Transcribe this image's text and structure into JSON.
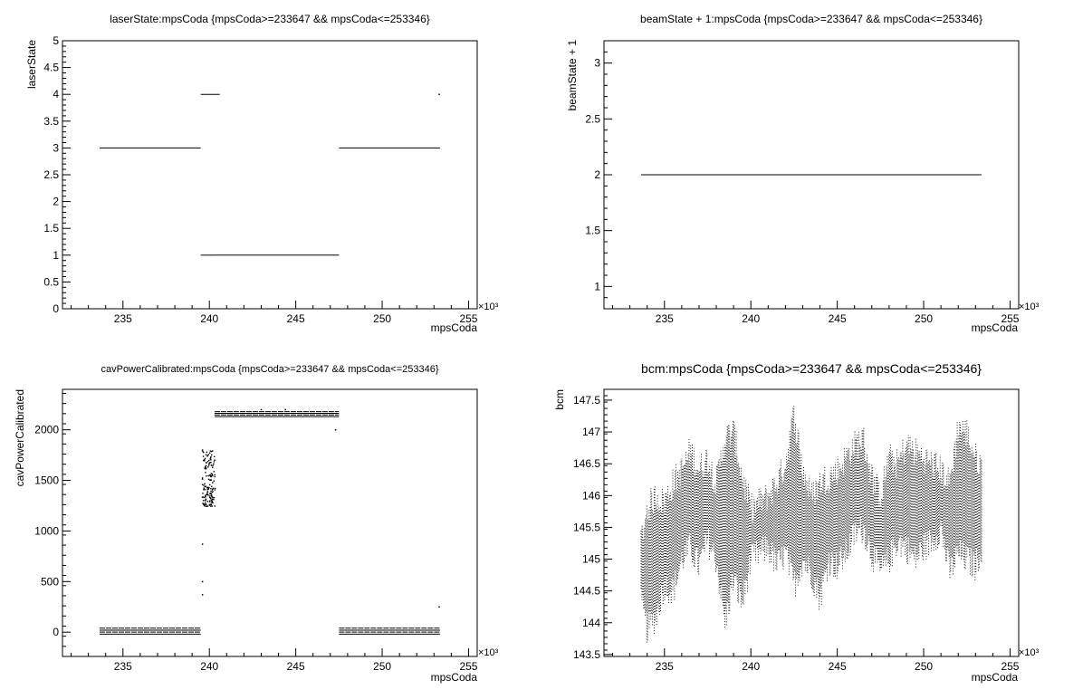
{
  "chart_data": [
    {
      "type": "scatter",
      "title": "laserState:mpsCoda {mpsCoda>=233647 && mpsCoda<=253346}",
      "xlabel": "mpsCoda",
      "ylabel": "laserState",
      "x_multiplier": "×10³",
      "xlim": [
        231.5,
        255.5
      ],
      "ylim": [
        0,
        5
      ],
      "xticks": [
        235,
        240,
        245,
        250,
        255
      ],
      "yticks": [
        0,
        0.5,
        1,
        1.5,
        2,
        2.5,
        3,
        3.5,
        4,
        4.5,
        5
      ],
      "grid": false,
      "series": [
        {
          "segments": [
            {
              "x": [
                233.647,
                239.5
              ],
              "y": 3
            },
            {
              "x": [
                239.5,
                240.6
              ],
              "y": 4
            },
            {
              "x": [
                239.5,
                240.3
              ],
              "y": 1
            },
            {
              "x": [
                240.3,
                247.5
              ],
              "y": 1
            },
            {
              "x": [
                247.5,
                253.346
              ],
              "y": 3
            }
          ],
          "points": [
            {
              "x": 253.3,
              "y": 4
            }
          ]
        }
      ]
    },
    {
      "type": "line",
      "title": "beamState + 1:mpsCoda {mpsCoda>=233647 && mpsCoda<=253346}",
      "xlabel": "mpsCoda",
      "ylabel": "beamState + 1",
      "x_multiplier": "×10³",
      "xlim": [
        231.5,
        255.5
      ],
      "ylim": [
        0.8,
        3.2
      ],
      "xticks": [
        235,
        240,
        245,
        250,
        255
      ],
      "yticks": [
        1,
        1.5,
        2,
        2.5,
        3
      ],
      "grid": false,
      "series": [
        {
          "segments": [
            {
              "x": [
                233.647,
                253.346
              ],
              "y": 2
            }
          ]
        }
      ]
    },
    {
      "type": "scatter",
      "title": "cavPowerCalibrated:mpsCoda {mpsCoda>=233647 && mpsCoda<=253346}",
      "xlabel": "mpsCoda",
      "ylabel": "cavPowerCalibrated",
      "x_multiplier": "×10³",
      "xlim": [
        231.5,
        255.5
      ],
      "ylim": [
        -240,
        2400
      ],
      "xticks": [
        235,
        240,
        245,
        250,
        255
      ],
      "yticks": [
        0,
        500,
        1000,
        1500,
        2000
      ],
      "grid": false,
      "series": [
        {
          "bands": [
            {
              "x": [
                233.647,
                239.5
              ],
              "y": [
                -20,
                40
              ]
            },
            {
              "x": [
                240.3,
                247.5
              ],
              "y": [
                2130,
                2180
              ]
            },
            {
              "x": [
                247.5,
                253.346
              ],
              "y": [
                -20,
                40
              ]
            }
          ],
          "clusters": [
            {
              "x": [
                239.55,
                240.3
              ],
              "y": [
                1250,
                1800
              ]
            }
          ],
          "points": [
            {
              "x": 239.6,
              "y": 870
            },
            {
              "x": 239.6,
              "y": 500
            },
            {
              "x": 239.6,
              "y": 370
            },
            {
              "x": 239.6,
              "y": 1800
            },
            {
              "x": 240.3,
              "y": 1700
            },
            {
              "x": 243.0,
              "y": 2200
            },
            {
              "x": 244.4,
              "y": 2200
            },
            {
              "x": 247.3,
              "y": 2000
            },
            {
              "x": 253.3,
              "y": 250
            }
          ]
        }
      ]
    },
    {
      "type": "scatter",
      "title": "bcm:mpsCoda {mpsCoda>=233647 && mpsCoda<=253346}",
      "xlabel": "mpsCoda",
      "ylabel": "bcm",
      "x_multiplier": "×10³",
      "xlim": [
        231.5,
        255.5
      ],
      "ylim": [
        143.47,
        147.67
      ],
      "xticks": [
        235,
        240,
        245,
        250,
        255
      ],
      "yticks": [
        143.5,
        144,
        144.5,
        145,
        145.5,
        146,
        146.5,
        147,
        147.5
      ],
      "grid": false,
      "series": [
        {
          "envelope": {
            "x": [
              233.65,
              234.0,
              234.5,
              235.0,
              235.5,
              236.0,
              236.5,
              237.0,
              237.5,
              238.0,
              238.5,
              239.0,
              239.5,
              240.0,
              240.5,
              241.0,
              241.5,
              242.0,
              242.5,
              243.0,
              243.5,
              244.0,
              244.5,
              245.0,
              245.5,
              246.0,
              246.5,
              247.0,
              247.5,
              248.0,
              248.5,
              249.0,
              249.5,
              250.0,
              250.5,
              251.0,
              251.5,
              252.0,
              252.5,
              253.0,
              253.35
            ],
            "lo": [
              144.3,
              143.9,
              144.1,
              144.6,
              144.5,
              145.0,
              145.2,
              144.9,
              145.3,
              145.0,
              144.0,
              144.7,
              144.3,
              145.0,
              145.1,
              145.2,
              144.9,
              145.1,
              144.6,
              145.0,
              144.8,
              144.4,
              145.0,
              144.9,
              145.1,
              145.4,
              145.5,
              145.1,
              144.8,
              145.0,
              145.3,
              145.2,
              145.0,
              145.2,
              145.3,
              145.5,
              144.8,
              145.1,
              145.0,
              144.9,
              145.2
            ],
            "hi": [
              145.3,
              145.8,
              146.0,
              145.9,
              146.2,
              146.4,
              146.7,
              146.4,
              146.6,
              146.2,
              146.9,
              147.0,
              146.3,
              145.8,
              145.9,
              146.0,
              146.2,
              146.5,
              147.3,
              146.4,
              146.0,
              146.2,
              146.3,
              146.4,
              146.6,
              146.8,
              146.9,
              146.3,
              146.0,
              146.6,
              146.5,
              146.8,
              146.7,
              146.6,
              146.5,
              146.4,
              146.2,
              147.1,
              147.0,
              146.6,
              146.5
            ]
          }
        }
      ]
    }
  ]
}
